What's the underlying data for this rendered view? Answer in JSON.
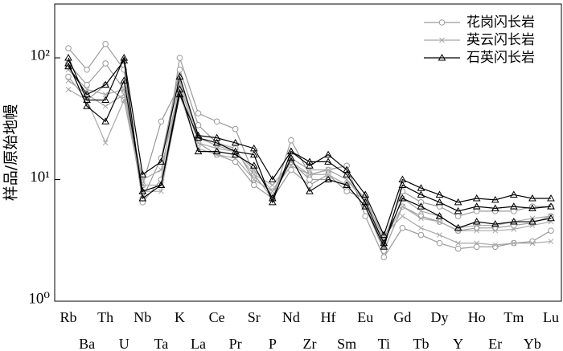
{
  "chart_data": {
    "type": "spider",
    "y_label": "样品/原始地幔",
    "log_scale": true,
    "categories": [
      "Rb",
      "Ba",
      "Th",
      "U",
      "Nb",
      "Ta",
      "K",
      "La",
      "Ce",
      "Pr",
      "Sr",
      "P",
      "Nd",
      "Zr",
      "Hf",
      "Sm",
      "Eu",
      "Ti",
      "Gd",
      "Tb",
      "Dy",
      "Y",
      "Ho",
      "Er",
      "Tm",
      "Yb",
      "Lu"
    ],
    "ylim": [
      1,
      277
    ],
    "yticks": [
      {
        "value": 1,
        "label": "10⁰"
      },
      {
        "value": 10,
        "label": "10¹"
      },
      {
        "value": 100,
        "label": "10²"
      }
    ],
    "legend": "upper right",
    "series": [
      {
        "name": "花岗闪长岩",
        "color": "#9a9a9a",
        "marker": "circle",
        "samples": [
          [
            120,
            80,
            130,
            80,
            6.5,
            10,
            100,
            35,
            30,
            26,
            11,
            7,
            21,
            11,
            12,
            13,
            5,
            2.3,
            4,
            3.5,
            3,
            2.7,
            2.8,
            2.8,
            3,
            3.1,
            3.8
          ],
          [
            90,
            60,
            90,
            55,
            7,
            15,
            80,
            28,
            20,
            18,
            10,
            8,
            14,
            10,
            10,
            9,
            6,
            2.6,
            6,
            5,
            4.5,
            3.8,
            4,
            4,
            4.2,
            4.4,
            5
          ],
          [
            70,
            45,
            60,
            45,
            9,
            30,
            60,
            20,
            16,
            14,
            9,
            7,
            12,
            9,
            11,
            8,
            7,
            3.2,
            8,
            6.5,
            6,
            5,
            5.5,
            5.5,
            5.5,
            6,
            6
          ]
        ]
      },
      {
        "name": "英云闪长岩",
        "color": "#a8a8a8",
        "marker": "x",
        "samples": [
          [
            55,
            45,
            20,
            45,
            8,
            8,
            50,
            18,
            16,
            15,
            10,
            8,
            13,
            11,
            11,
            9,
            6,
            3,
            7,
            5.5,
            5,
            4,
            4.2,
            4.2,
            4.5,
            4.8,
            5
          ],
          [
            65,
            50,
            40,
            50,
            10,
            12,
            60,
            20,
            18,
            17,
            11,
            9,
            14,
            11,
            12,
            10,
            6.5,
            3.5,
            5,
            4,
            3.5,
            3,
            3,
            2.9,
            3,
            3,
            3.1
          ],
          [
            80,
            55,
            50,
            55,
            9,
            9,
            65,
            22,
            19,
            17,
            12,
            8,
            15,
            12,
            12,
            10,
            7,
            3.2,
            6,
            4.8,
            4.5,
            3.8,
            3.8,
            3.8,
            3.9,
            4.2,
            4.5
          ]
        ]
      },
      {
        "name": "石英闪长岩",
        "color": "#000000",
        "marker": "triangle",
        "samples": [
          [
            100,
            45,
            45,
            100,
            11,
            14,
            70,
            23,
            22,
            20,
            18,
            10,
            17,
            13,
            16,
            12,
            7.5,
            3.5,
            10,
            8.5,
            7.5,
            6.5,
            7,
            6.8,
            7.5,
            7,
            7
          ],
          [
            90,
            40,
            30,
            65,
            8,
            9,
            55,
            17,
            17,
            16,
            13,
            7,
            15,
            8,
            10,
            9,
            6,
            2.8,
            9,
            7.5,
            6.5,
            5.5,
            6,
            5.8,
            6,
            5.8,
            6
          ],
          [
            85,
            50,
            60,
            95,
            7,
            9,
            50,
            22,
            20,
            17,
            16,
            6.5,
            17,
            14,
            14,
            11,
            6.5,
            3,
            7,
            6,
            5,
            4,
            4.5,
            4.3,
            4.5,
            4.5,
            4.8
          ]
        ]
      }
    ]
  }
}
